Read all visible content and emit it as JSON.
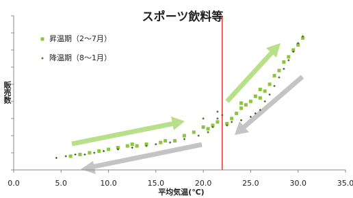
{
  "chart_data": {
    "type": "scatter",
    "title": "スポーツ飲料等",
    "x_label": "平均気温(℃)",
    "y_label": "販売数",
    "xlim": [
      0,
      35
    ],
    "xticks": [
      {
        "value": 0,
        "label": "0.0"
      },
      {
        "value": 5,
        "label": "5.0"
      },
      {
        "value": 10,
        "label": "10.0"
      },
      {
        "value": 15,
        "label": "15.0"
      },
      {
        "value": 20,
        "label": "20.0"
      },
      {
        "value": 25,
        "label": "25.0"
      },
      {
        "value": 30,
        "label": "30.0"
      },
      {
        "value": 35,
        "label": "35.0"
      }
    ],
    "ylim": [
      0,
      9
    ],
    "yticks": [
      0,
      1,
      2,
      3,
      4,
      5,
      6,
      7,
      8,
      9
    ],
    "vline": 22,
    "vline_color": "#e8302a",
    "legend": "top-left",
    "series": [
      {
        "name": "昇温期（2～7月）",
        "color": "#8cc63f",
        "marker": "square",
        "x": [
          6.0,
          7.0,
          8.0,
          9.0,
          10.0,
          11.0,
          12.0,
          13.0,
          14.0,
          15.5,
          17.0,
          18.0,
          19.0,
          20.0,
          20.5,
          21.0,
          21.5,
          22.5,
          23.0,
          23.5,
          24.0,
          24.5,
          25.0,
          25.5,
          26.0,
          26.5,
          27.0,
          27.5,
          28.0,
          28.5,
          29.0,
          29.5,
          30.0,
          30.5,
          16.0,
          12.5,
          24.0,
          26.0
        ],
        "values": [
          0.8,
          0.9,
          1.0,
          1.1,
          1.2,
          1.3,
          1.4,
          1.4,
          1.5,
          1.6,
          1.7,
          2.0,
          2.2,
          2.5,
          2.4,
          2.6,
          2.8,
          2.7,
          3.0,
          3.3,
          3.6,
          3.8,
          4.0,
          4.3,
          4.2,
          4.6,
          5.0,
          5.5,
          5.8,
          6.3,
          6.6,
          7.0,
          7.3,
          7.7,
          1.7,
          1.5,
          3.9,
          4.7
        ]
      },
      {
        "name": "降温期（8～1月）",
        "color": "#4a5a2a",
        "marker": "cross",
        "x": [
          4.5,
          5.5,
          6.5,
          7.5,
          8.5,
          9.5,
          11.0,
          12.5,
          14.0,
          15.0,
          16.5,
          18.0,
          19.5,
          20.5,
          21.0,
          21.5,
          22.0,
          22.5,
          23.0,
          24.0,
          25.0,
          25.5,
          26.0,
          26.5,
          27.0,
          27.5,
          28.0,
          28.5,
          29.0,
          29.5,
          30.0,
          30.5,
          20.0,
          21.5
        ],
        "values": [
          0.7,
          0.8,
          0.9,
          0.9,
          1.0,
          1.1,
          1.2,
          1.3,
          1.4,
          1.5,
          1.6,
          1.8,
          2.0,
          2.2,
          2.5,
          3.0,
          3.2,
          2.6,
          2.8,
          2.9,
          3.1,
          3.3,
          3.5,
          4.0,
          4.4,
          4.9,
          5.4,
          5.9,
          6.4,
          6.9,
          7.4,
          7.8,
          3.0,
          3.4
        ]
      }
    ]
  }
}
